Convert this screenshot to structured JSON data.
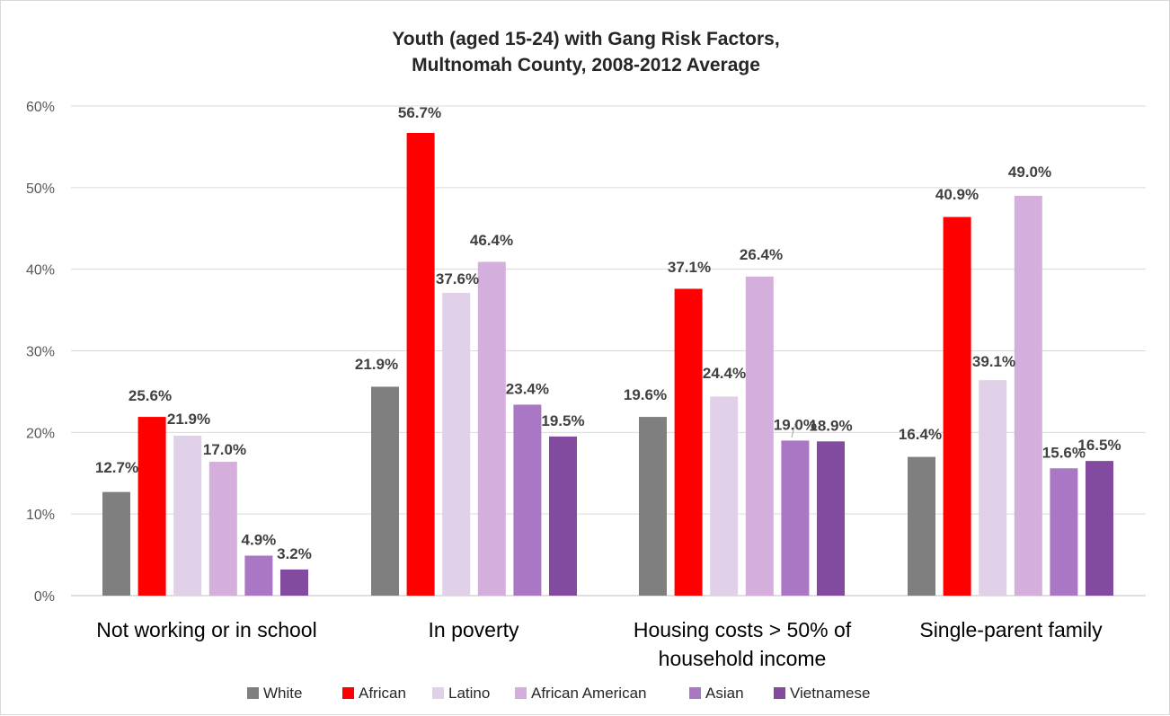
{
  "chart_data": {
    "type": "bar",
    "title": [
      "Youth (aged 15-24) with Gang Risk Factors,",
      "Multnomah County, 2008-2012 Average"
    ],
    "categories": [
      [
        "Not working or in school"
      ],
      [
        "In poverty"
      ],
      [
        "Housing costs > 50% of",
        "household income"
      ],
      [
        "Single-parent family"
      ]
    ],
    "series": [
      {
        "name": "White",
        "color": "#7f7f7f",
        "values": [
          12.7,
          25.6,
          21.9,
          17.0
        ]
      },
      {
        "name": "African",
        "color": "#ff0000",
        "values": [
          21.9,
          56.7,
          37.6,
          46.4
        ]
      },
      {
        "name": "Latino",
        "color": "#e0d0e8",
        "values": [
          19.6,
          37.1,
          24.4,
          26.4
        ]
      },
      {
        "name": "African American",
        "color": "#d5afdb",
        "values": [
          16.4,
          40.9,
          39.1,
          49.0
        ]
      },
      {
        "name": "Asian",
        "color": "#a977c3",
        "values": [
          4.9,
          23.4,
          19.0,
          15.6
        ]
      },
      {
        "name": "Vietnamese",
        "color": "#824ba0",
        "values": [
          3.2,
          19.5,
          18.9,
          16.5
        ]
      }
    ],
    "data_labels": [
      [
        "12.7%",
        "25.6%",
        "21.9%",
        "17.0%"
      ],
      [
        "21.9%",
        "56.7%",
        "37.6%",
        "46.4%"
      ],
      [
        "19.6%",
        "37.1%",
        "24.4%",
        "26.4%"
      ],
      [
        "16.4%",
        "40.9%",
        "39.1%",
        "49.0%"
      ],
      [
        "4.9%",
        "23.4%",
        "19.0%",
        "15.6%"
      ],
      [
        "3.2%",
        "19.5%",
        "18.9%",
        "16.5%"
      ]
    ],
    "y_ticks": [
      "0%",
      "10%",
      "20%",
      "30%",
      "40%",
      "50%",
      "60%"
    ],
    "ylim": [
      0,
      60
    ],
    "grid": true,
    "legend": "bottom"
  }
}
